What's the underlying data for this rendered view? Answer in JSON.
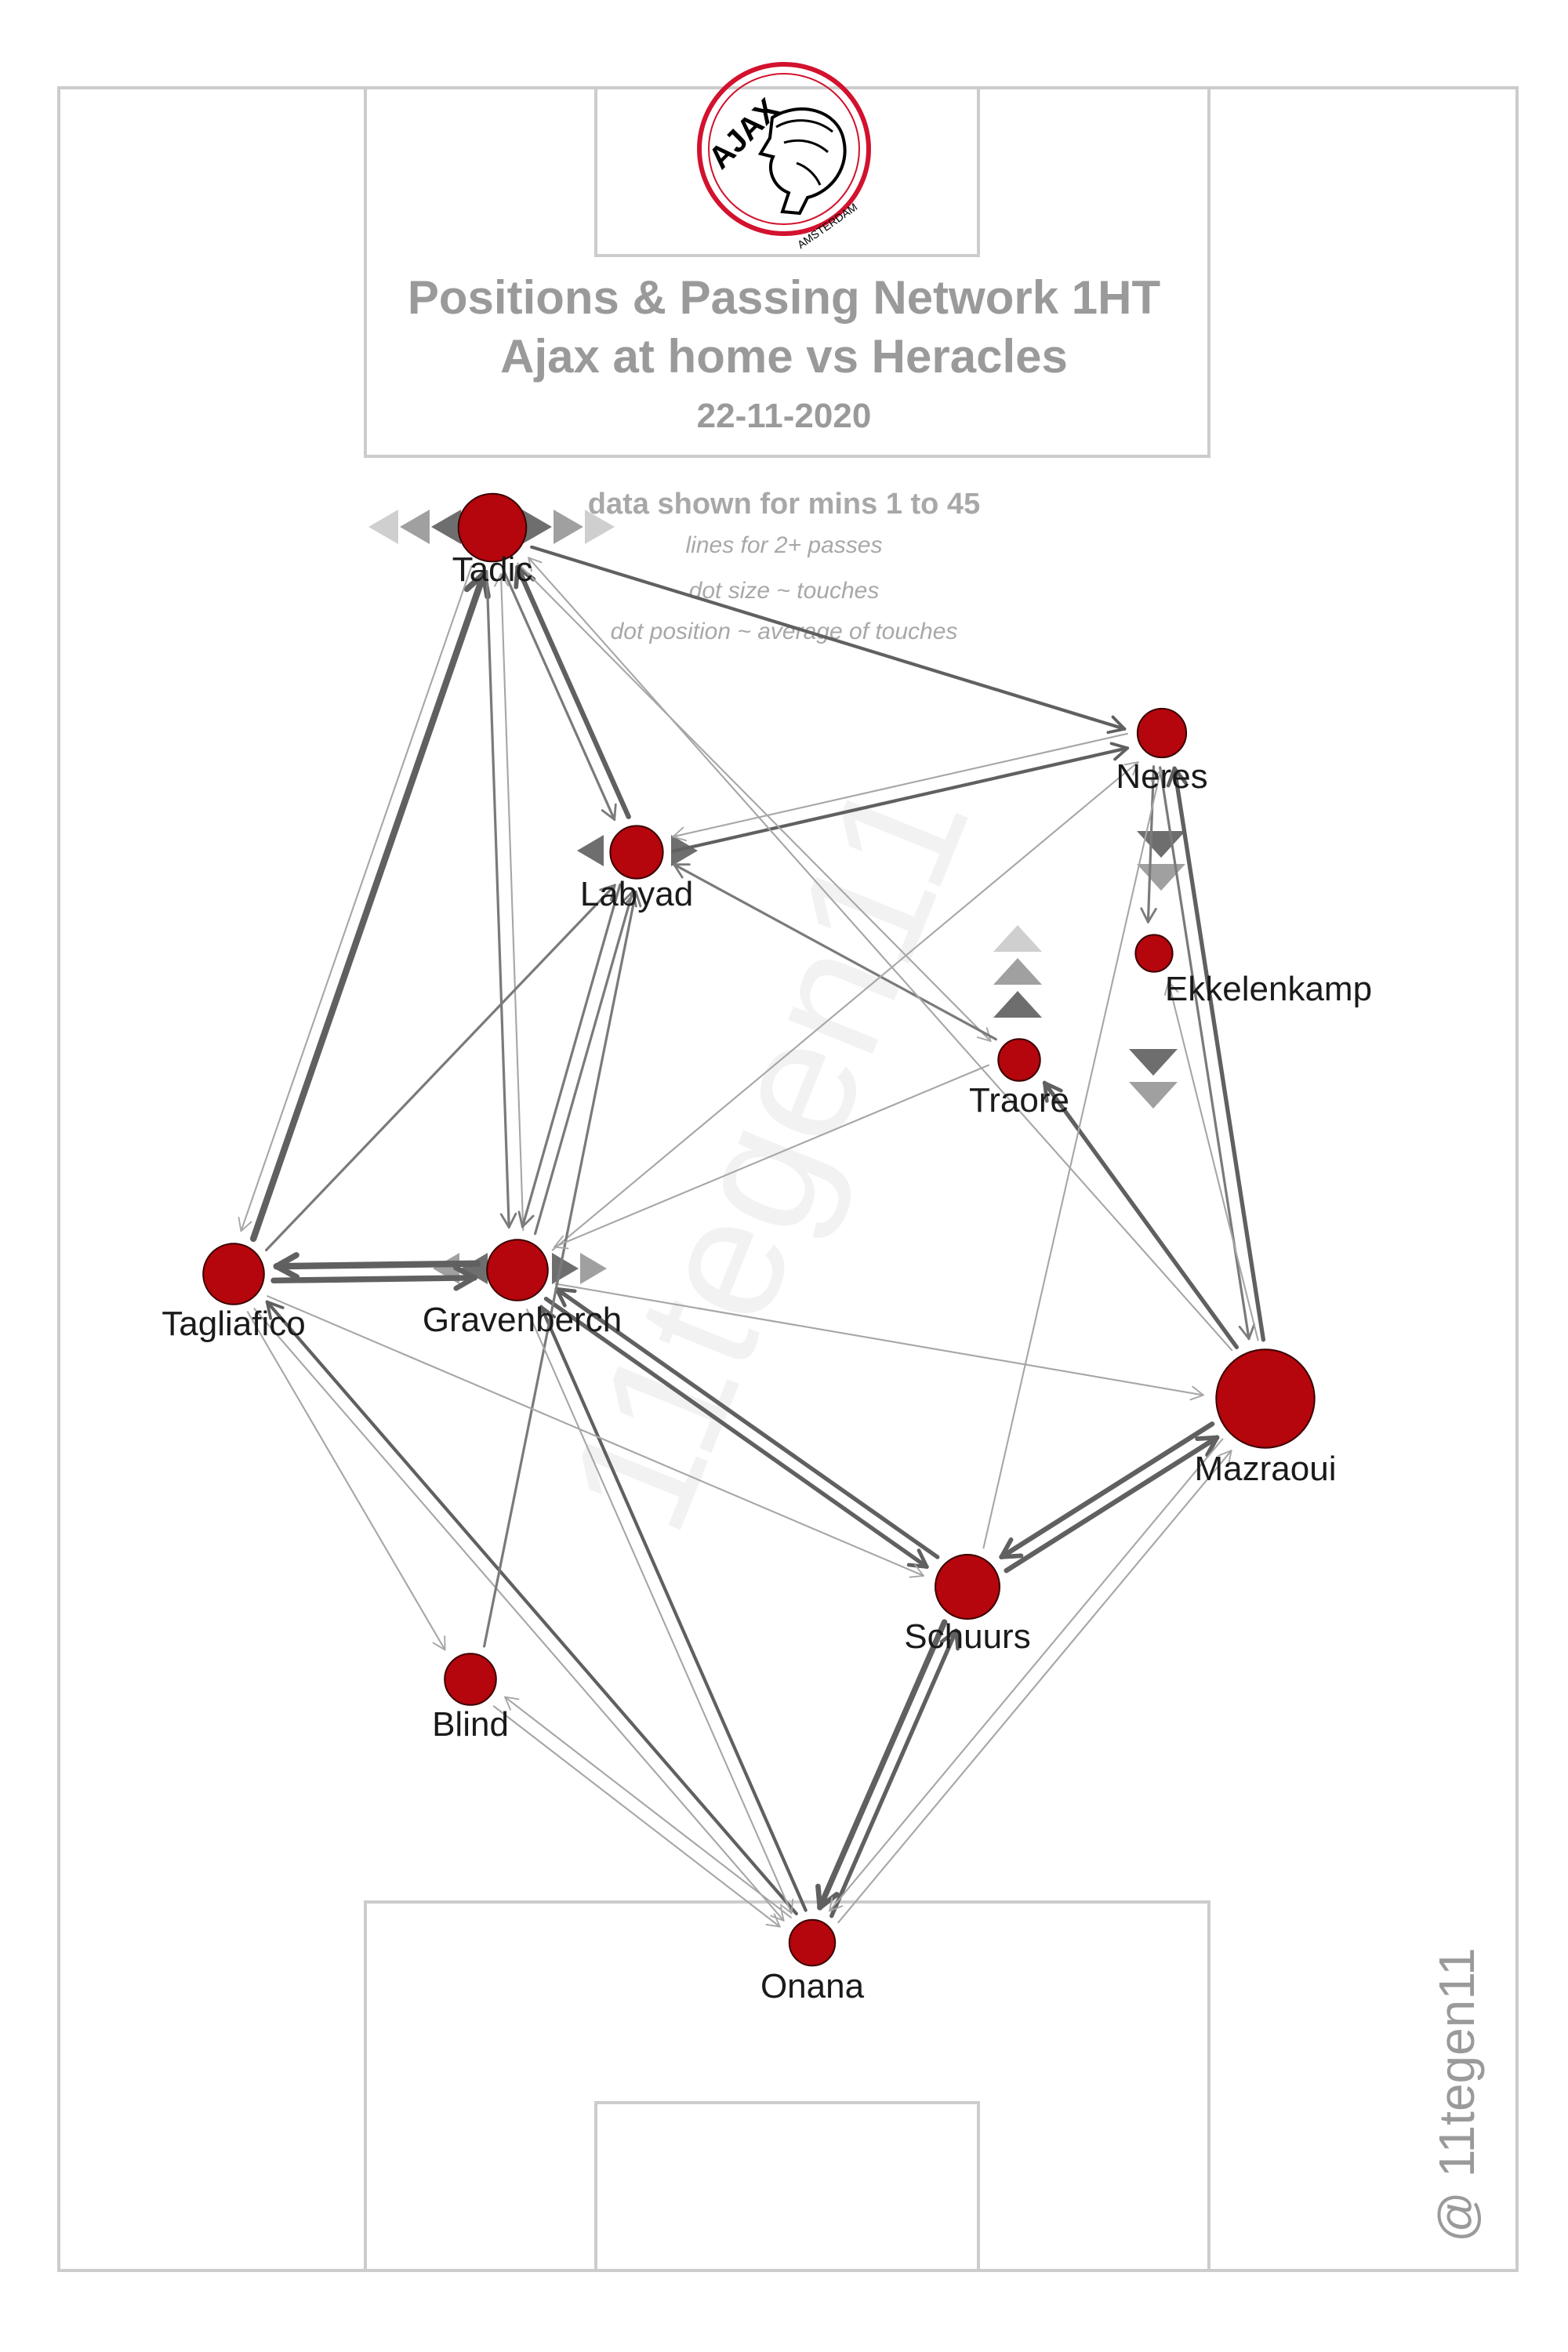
{
  "header": {
    "title_line1": "Positions & Passing Network 1HT",
    "title_line2": "Ajax at home vs Heracles",
    "date": "22-11-2020"
  },
  "logo": {
    "text": "AJAX",
    "subtext": "AMSTERDAM",
    "accent_color": "#d2122e"
  },
  "notes": {
    "data_shown": "data shown for mins 1 to 45",
    "lines_rule": "lines for 2+ passes",
    "dot_size_rule": "dot size ~ touches",
    "dot_position_rule": "dot position ~ average of touches"
  },
  "watermark": "11tegen11",
  "credit": "@ 11tegen11",
  "colors": {
    "dot_fill": "#b5050d",
    "dot_stroke": "#3a0000",
    "pass_line": "#606060",
    "pitch_line": "#cccccc"
  },
  "players": [
    {
      "id": "tadic",
      "name": "Tadic",
      "touches": 60
    },
    {
      "id": "neres",
      "name": "Neres",
      "touches": 24
    },
    {
      "id": "labyad",
      "name": "Labyad",
      "touches": 30
    },
    {
      "id": "ekkelenkamp",
      "name": "Ekkelenkamp",
      "touches": 10
    },
    {
      "id": "traore",
      "name": "Traore",
      "touches": 15
    },
    {
      "id": "tagliafico",
      "name": "Tagliafico",
      "touches": 45
    },
    {
      "id": "gravenberch",
      "name": "Gravenberch",
      "touches": 45
    },
    {
      "id": "mazraoui",
      "name": "Mazraoui",
      "touches": 150
    },
    {
      "id": "schuurs",
      "name": "Schuurs",
      "touches": 52
    },
    {
      "id": "blind",
      "name": "Blind",
      "touches": 28
    },
    {
      "id": "onana",
      "name": "Onana",
      "touches": 20
    }
  ],
  "passes": [
    {
      "from": "tagliafico",
      "to": "tadic",
      "count": 8
    },
    {
      "from": "tadic",
      "to": "tagliafico",
      "count": 2
    },
    {
      "from": "tadic",
      "to": "labyad",
      "count": 3
    },
    {
      "from": "labyad",
      "to": "tadic",
      "count": 6
    },
    {
      "from": "tadic",
      "to": "neres",
      "count": 4
    },
    {
      "from": "neres",
      "to": "labyad",
      "count": 2
    },
    {
      "from": "labyad",
      "to": "neres",
      "count": 4
    },
    {
      "from": "tadic",
      "to": "gravenberch",
      "count": 3
    },
    {
      "from": "gravenberch",
      "to": "tadic",
      "count": 2
    },
    {
      "from": "tadic",
      "to": "traore",
      "count": 2
    },
    {
      "from": "traore",
      "to": "labyad",
      "count": 3
    },
    {
      "from": "tagliafico",
      "to": "labyad",
      "count": 3
    },
    {
      "from": "gravenberch",
      "to": "labyad",
      "count": 3
    },
    {
      "from": "labyad",
      "to": "gravenberch",
      "count": 3
    },
    {
      "from": "tagliafico",
      "to": "gravenberch",
      "count": 7
    },
    {
      "from": "gravenberch",
      "to": "tagliafico",
      "count": 8
    },
    {
      "from": "gravenberch",
      "to": "schuurs",
      "count": 5
    },
    {
      "from": "schuurs",
      "to": "gravenberch",
      "count": 5
    },
    {
      "from": "gravenberch",
      "to": "mazraoui",
      "count": 2
    },
    {
      "from": "gravenberch",
      "to": "neres",
      "count": 2
    },
    {
      "from": "schuurs",
      "to": "mazraoui",
      "count": 6
    },
    {
      "from": "mazraoui",
      "to": "schuurs",
      "count": 6
    },
    {
      "from": "mazraoui",
      "to": "traore",
      "count": 5
    },
    {
      "from": "mazraoui",
      "to": "neres",
      "count": 5
    },
    {
      "from": "neres",
      "to": "mazraoui",
      "count": 3
    },
    {
      "from": "neres",
      "to": "ekkelenkamp",
      "count": 3
    },
    {
      "from": "mazraoui",
      "to": "ekkelenkamp",
      "count": 2
    },
    {
      "from": "schuurs",
      "to": "onana",
      "count": 7
    },
    {
      "from": "onana",
      "to": "schuurs",
      "count": 5
    },
    {
      "from": "onana",
      "to": "mazraoui",
      "count": 2
    },
    {
      "from": "mazraoui",
      "to": "onana",
      "count": 2
    },
    {
      "from": "onana",
      "to": "gravenberch",
      "count": 4
    },
    {
      "from": "onana",
      "to": "tagliafico",
      "count": 4
    },
    {
      "from": "tagliafico",
      "to": "onana",
      "count": 2
    },
    {
      "from": "blind",
      "to": "labyad",
      "count": 3
    },
    {
      "from": "blind",
      "to": "onana",
      "count": 2
    },
    {
      "from": "onana",
      "to": "blind",
      "count": 2
    },
    {
      "from": "tagliafico",
      "to": "blind",
      "count": 2
    },
    {
      "from": "tagliafico",
      "to": "schuurs",
      "count": 2
    },
    {
      "from": "gravenberch",
      "to": "onana",
      "count": 2
    },
    {
      "from": "schuurs",
      "to": "neres",
      "count": 2
    },
    {
      "from": "mazraoui",
      "to": "tadic",
      "count": 2
    },
    {
      "from": "traore",
      "to": "gravenberch",
      "count": 2
    }
  ]
}
